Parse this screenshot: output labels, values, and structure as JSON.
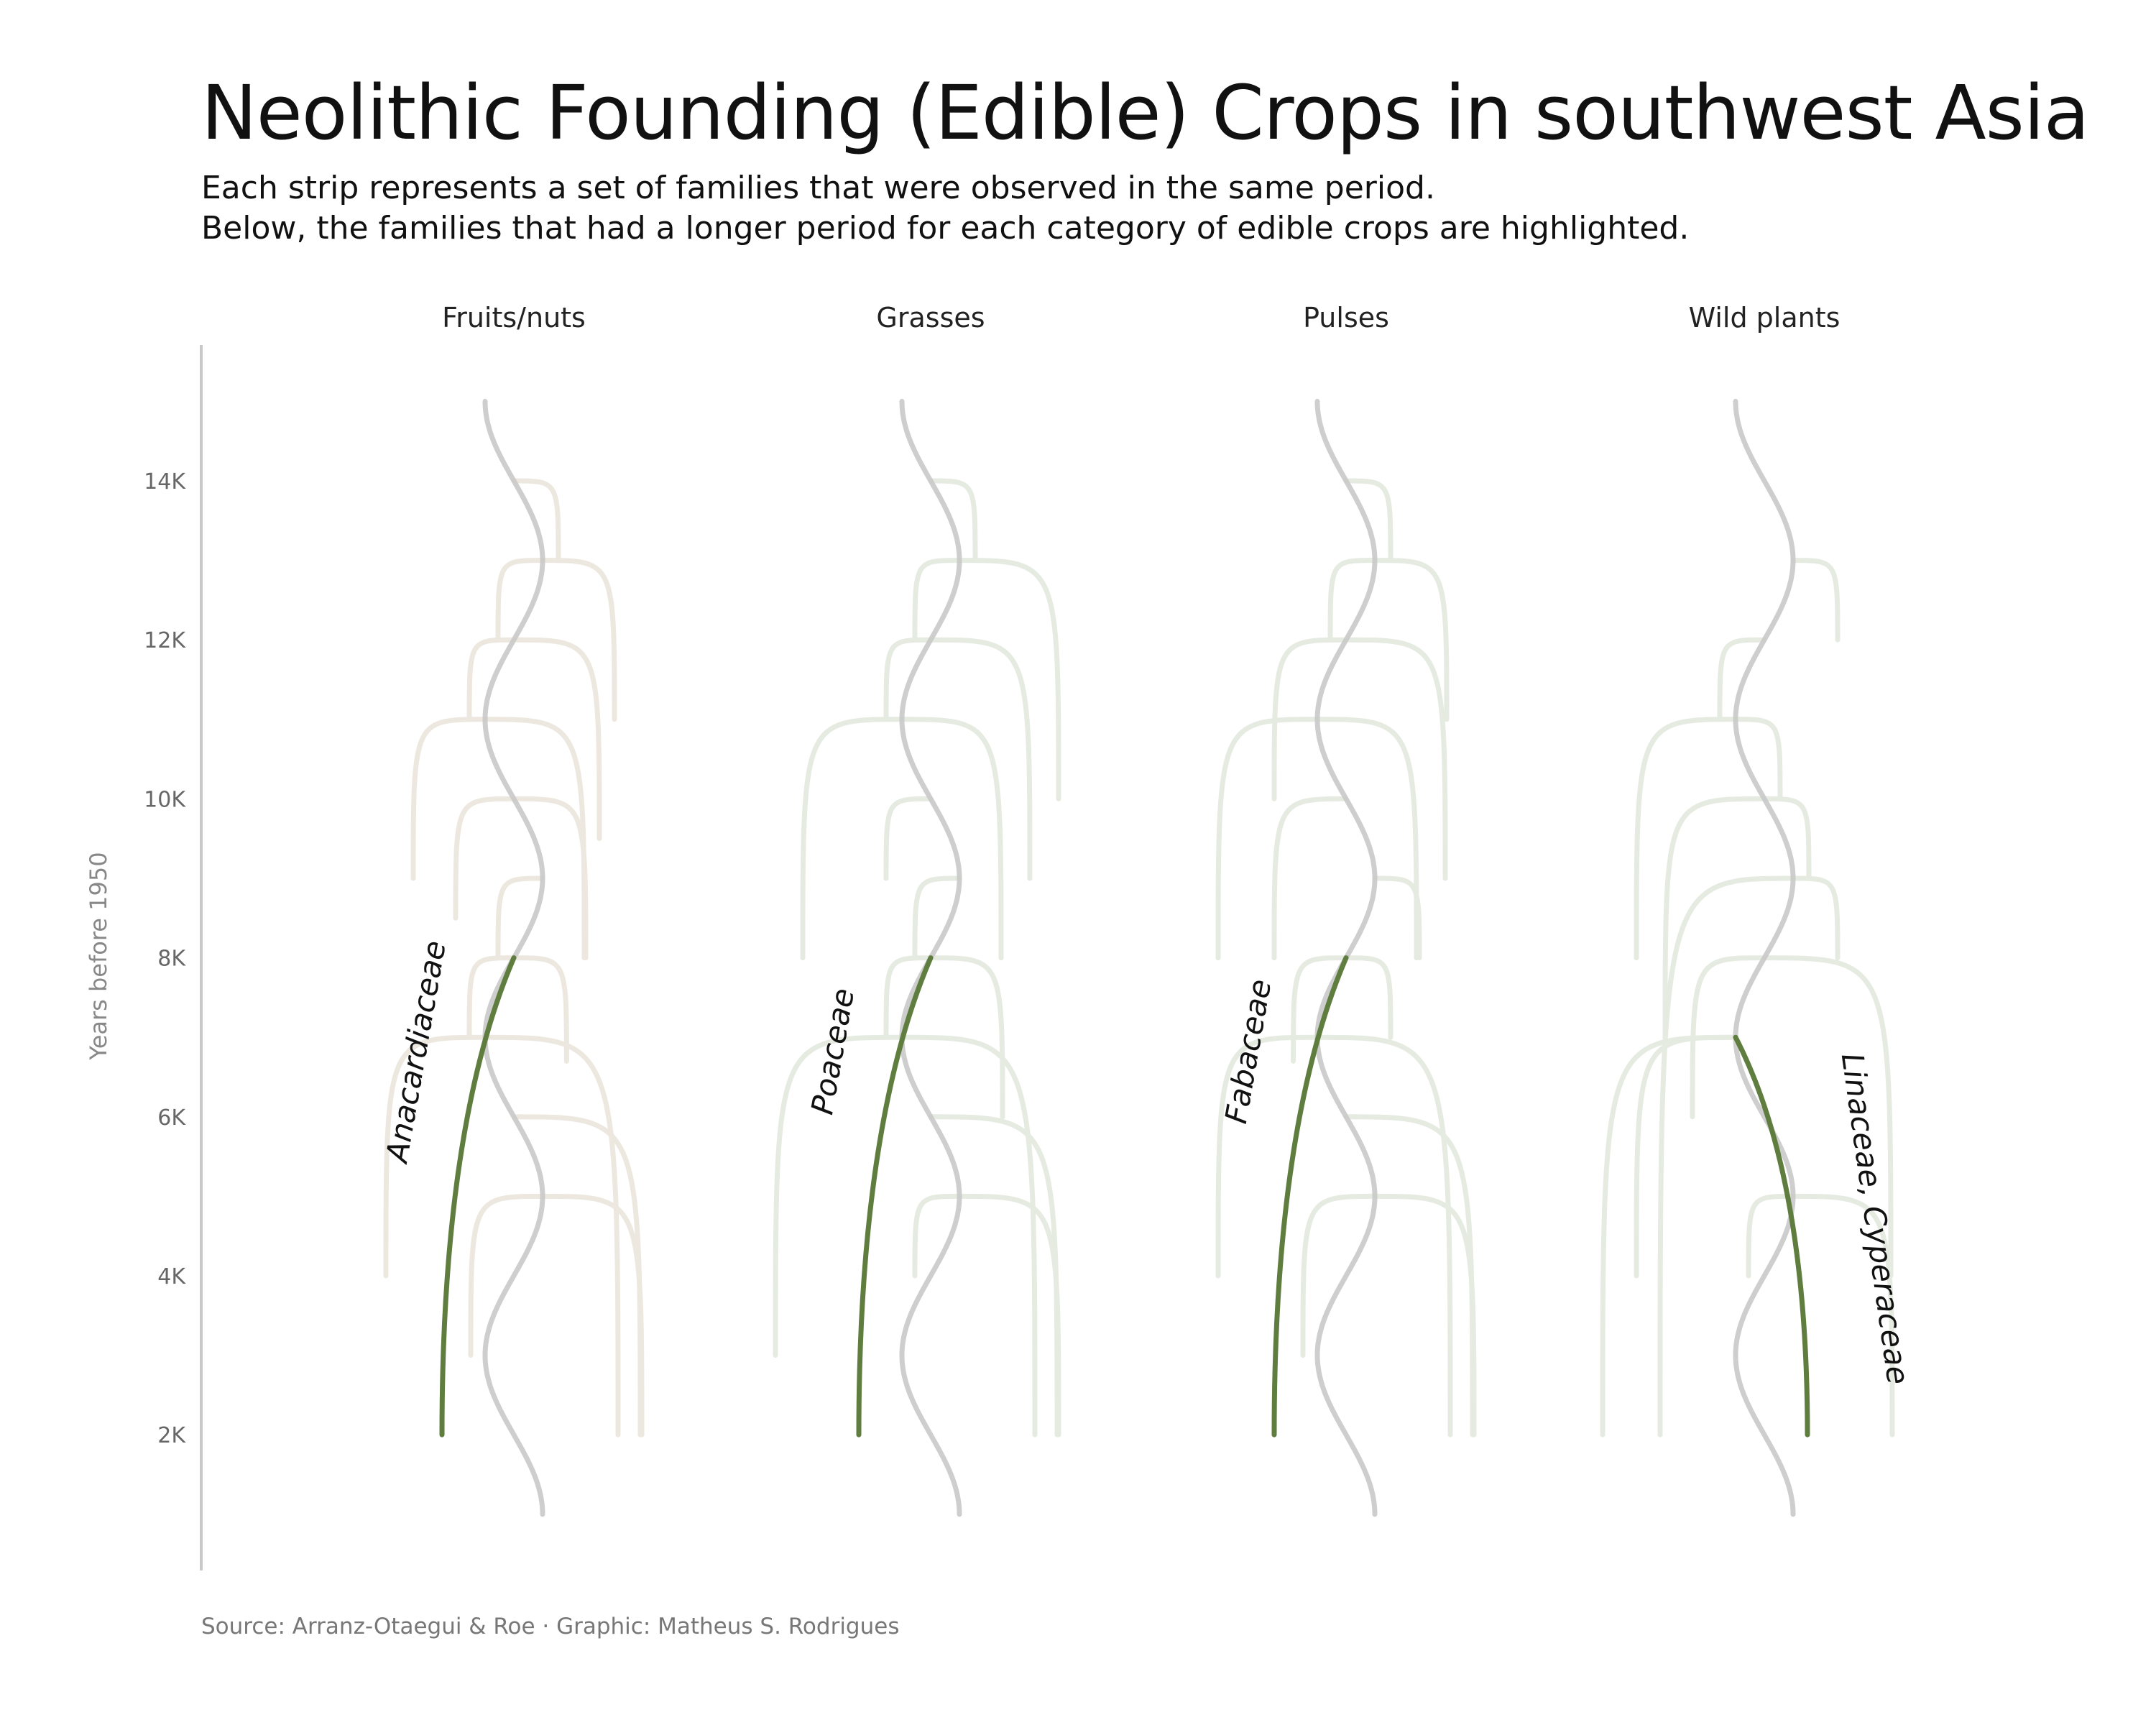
{
  "title": "Neolithic Founding (Edible) Crops in southwest Asia",
  "subtitle": [
    "Each strip represents a set of families that were observed in the same period.",
    "Below, the families that had a longer period for each category of edible crops are highlighted."
  ],
  "source": "Source: Arranz-Otaegui & Roe · Graphic: Matheus S. Rodrigues",
  "colors": {
    "stem": "#c9c9c9",
    "fruits_branch": "#ede8df",
    "other_branch": "#e6ebe1",
    "highlight": "#5f7d3f",
    "axis": "#c8c8c8",
    "tick_text": "#666666"
  },
  "chart_data": {
    "type": "line",
    "ylabel": "Years before 1950",
    "ytick_labels": [
      "14K",
      "12K",
      "10K",
      "8K",
      "6K",
      "4K",
      "2K"
    ],
    "ytick_values": [
      14000,
      12000,
      10000,
      8000,
      6000,
      4000,
      2000
    ],
    "ylim": [
      400,
      15800
    ],
    "stem_range": [
      15000,
      1000
    ],
    "panels": [
      {
        "name": "Fruits/nuts",
        "color_key": "fruits_branch",
        "branches": [
          {
            "from": 14000,
            "to": 13000,
            "side": "right"
          },
          {
            "from": 13000,
            "to": 12000,
            "side": "left"
          },
          {
            "from": 13000,
            "to": 11000,
            "side": "right"
          },
          {
            "from": 12000,
            "to": 11000,
            "side": "left"
          },
          {
            "from": 12000,
            "to": 9500,
            "side": "right"
          },
          {
            "from": 11000,
            "to": 9000,
            "side": "left"
          },
          {
            "from": 11000,
            "to": 8000,
            "side": "right"
          },
          {
            "from": 10000,
            "to": 8500,
            "side": "left"
          },
          {
            "from": 10000,
            "to": 8000,
            "side": "right"
          },
          {
            "from": 9000,
            "to": 8000,
            "side": "left"
          },
          {
            "from": 8000,
            "to": 6700,
            "side": "right"
          },
          {
            "from": 8000,
            "to": 7000,
            "side": "left"
          },
          {
            "from": 7000,
            "to": 2000,
            "side": "right"
          },
          {
            "from": 7000,
            "to": 4000,
            "side": "left"
          },
          {
            "from": 6000,
            "to": 2000,
            "side": "right"
          },
          {
            "from": 5000,
            "to": 2000,
            "side": "right"
          },
          {
            "from": 5000,
            "to": 3000,
            "side": "left"
          }
        ],
        "highlight": {
          "label": "Anacardiaceae",
          "from": 8000,
          "to": 2000,
          "side": "left"
        }
      },
      {
        "name": "Grasses",
        "color_key": "other_branch",
        "branches": [
          {
            "from": 14000,
            "to": 13000,
            "side": "right"
          },
          {
            "from": 13000,
            "to": 12000,
            "side": "left"
          },
          {
            "from": 13000,
            "to": 10000,
            "side": "right"
          },
          {
            "from": 12000,
            "to": 11000,
            "side": "left"
          },
          {
            "from": 12000,
            "to": 9000,
            "side": "right"
          },
          {
            "from": 11000,
            "to": 8000,
            "side": "left"
          },
          {
            "from": 11000,
            "to": 8000,
            "side": "right"
          },
          {
            "from": 10000,
            "to": 9000,
            "side": "left"
          },
          {
            "from": 9000,
            "to": 8000,
            "side": "left"
          },
          {
            "from": 8000,
            "to": 7000,
            "side": "left"
          },
          {
            "from": 8000,
            "to": 6000,
            "side": "right"
          },
          {
            "from": 7000,
            "to": 2000,
            "side": "right"
          },
          {
            "from": 7000,
            "to": 3000,
            "side": "left"
          },
          {
            "from": 6000,
            "to": 2000,
            "side": "right"
          },
          {
            "from": 5000,
            "to": 2000,
            "side": "right"
          },
          {
            "from": 5000,
            "to": 4000,
            "side": "left"
          }
        ],
        "highlight": {
          "label": "Poaceae",
          "from": 8000,
          "to": 2000,
          "side": "left"
        }
      },
      {
        "name": "Pulses",
        "color_key": "other_branch",
        "branches": [
          {
            "from": 14000,
            "to": 13000,
            "side": "right"
          },
          {
            "from": 13000,
            "to": 12000,
            "side": "left"
          },
          {
            "from": 13000,
            "to": 11000,
            "side": "right"
          },
          {
            "from": 12000,
            "to": 10000,
            "side": "left"
          },
          {
            "from": 12000,
            "to": 9000,
            "side": "right"
          },
          {
            "from": 11000,
            "to": 8000,
            "side": "left"
          },
          {
            "from": 11000,
            "to": 8000,
            "side": "right"
          },
          {
            "from": 10000,
            "to": 8000,
            "side": "left"
          },
          {
            "from": 9000,
            "to": 8000,
            "side": "right"
          },
          {
            "from": 8000,
            "to": 6700,
            "side": "left"
          },
          {
            "from": 8000,
            "to": 7000,
            "side": "right"
          },
          {
            "from": 7000,
            "to": 2000,
            "side": "right"
          },
          {
            "from": 7000,
            "to": 4000,
            "side": "left"
          },
          {
            "from": 6000,
            "to": 2000,
            "side": "right"
          },
          {
            "from": 5000,
            "to": 2000,
            "side": "right"
          },
          {
            "from": 5000,
            "to": 3000,
            "side": "left"
          }
        ],
        "highlight": {
          "label": "Fabaceae",
          "from": 8000,
          "to": 2000,
          "side": "left"
        }
      },
      {
        "name": "Wild plants",
        "color_key": "other_branch",
        "branches": [
          {
            "from": 13000,
            "to": 12000,
            "side": "right"
          },
          {
            "from": 12000,
            "to": 11000,
            "side": "left"
          },
          {
            "from": 11000,
            "to": 8000,
            "side": "left"
          },
          {
            "from": 11000,
            "to": 10000,
            "side": "right"
          },
          {
            "from": 10000,
            "to": 7000,
            "side": "left"
          },
          {
            "from": 10000,
            "to": 9000,
            "side": "right"
          },
          {
            "from": 9000,
            "to": 2000,
            "side": "left"
          },
          {
            "from": 9000,
            "to": 8000,
            "side": "right"
          },
          {
            "from": 8000,
            "to": 6000,
            "side": "left"
          },
          {
            "from": 8000,
            "to": 4000,
            "side": "right"
          },
          {
            "from": 7000,
            "to": 4000,
            "side": "left"
          },
          {
            "from": 7000,
            "to": 2000,
            "side": "left"
          },
          {
            "from": 5000,
            "to": 4000,
            "side": "left"
          },
          {
            "from": 5000,
            "to": 2000,
            "side": "right"
          }
        ],
        "highlight": {
          "label": "Linaceae, Cyperaceae",
          "from": 7000,
          "to": 2000,
          "side": "right"
        }
      }
    ]
  }
}
